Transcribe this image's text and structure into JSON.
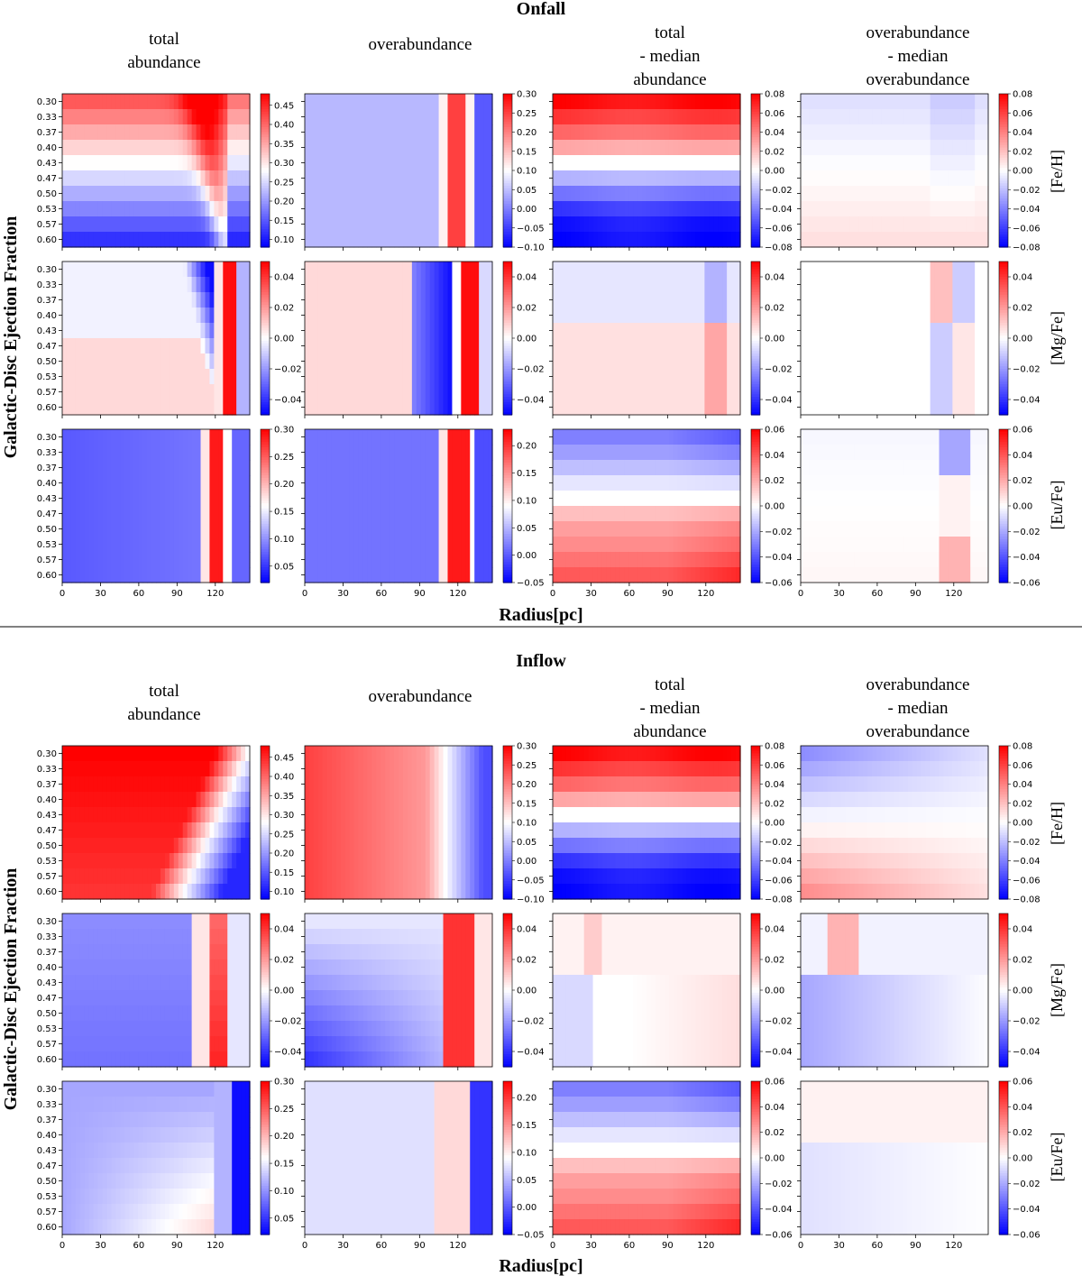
{
  "figure": {
    "sections": [
      {
        "title": "Onfall",
        "xlabel": "Radius[pc]"
      },
      {
        "title": "Inflow",
        "xlabel": "Radius[pc]"
      }
    ],
    "ylabel": "Galactic-Disc Ejection Fraction",
    "column_titles": [
      [
        "total",
        "abundance"
      ],
      [
        "overabundance"
      ],
      [
        "total",
        "- median",
        "abundance"
      ],
      [
        "overabundance",
        "- median",
        "overabundance"
      ]
    ],
    "row_labels": [
      "[Fe/H]",
      "[Mg/Fe]",
      "[Eu/Fe]"
    ],
    "colormap": {
      "low": "#0000ff",
      "mid": "#ffffff",
      "high": "#ff0000",
      "name": "bwr"
    }
  },
  "chart_data": {
    "type": "heatmap",
    "y_categories": [
      "0.30",
      "0.33",
      "0.37",
      "0.40",
      "0.43",
      "0.47",
      "0.50",
      "0.53",
      "0.57",
      "0.60"
    ],
    "x_ticks": [
      "0",
      "30",
      "60",
      "90",
      "120"
    ],
    "x_range": [
      0,
      147
    ],
    "colorbars": {
      "col0": [
        {
          "range": [
            0.08,
            0.48
          ],
          "ticks": [
            "0.10",
            "0.15",
            "0.20",
            "0.25",
            "0.30",
            "0.35",
            "0.40",
            "0.45"
          ]
        },
        {
          "range": [
            -0.05,
            0.05
          ],
          "ticks": [
            "−0.04",
            "−0.02",
            "0.00",
            "0.02",
            "0.04"
          ]
        },
        {
          "range": [
            0.02,
            0.3
          ],
          "ticks": [
            "0.05",
            "0.10",
            "0.15",
            "0.20",
            "0.25",
            "0.30"
          ]
        }
      ],
      "col1": [
        {
          "range": [
            -0.1,
            0.3
          ],
          "ticks": [
            "−0.10",
            "−0.05",
            "0.00",
            "0.05",
            "0.10",
            "0.15",
            "0.20",
            "0.25",
            "0.30"
          ]
        },
        {
          "range": [
            -0.05,
            0.05
          ],
          "ticks": [
            "−0.04",
            "−0.02",
            "0.00",
            "0.02",
            "0.04"
          ]
        },
        {
          "range": [
            -0.05,
            0.23
          ],
          "ticks": [
            "−0.05",
            "0.00",
            "0.05",
            "0.10",
            "0.15",
            "0.20"
          ]
        }
      ],
      "col23": [
        {
          "range": [
            -0.08,
            0.08
          ],
          "ticks": [
            "−0.08",
            "−0.06",
            "−0.04",
            "−0.02",
            "0.00",
            "0.02",
            "0.04",
            "0.06",
            "0.08"
          ]
        },
        {
          "range": [
            -0.05,
            0.05
          ],
          "ticks": [
            "−0.04",
            "−0.02",
            "0.00",
            "0.02",
            "0.04"
          ]
        },
        {
          "range": [
            -0.06,
            0.06
          ],
          "ticks": [
            "−0.06",
            "−0.04",
            "−0.02",
            "0.00",
            "0.02",
            "0.04",
            "0.06"
          ]
        }
      ]
    },
    "panel_patterns": {
      "Onfall": [
        [
          "onfall-fe-total",
          "onfall-fe-over",
          "fe-diff",
          "onfall-fe-overdiff"
        ],
        [
          "onfall-mg-total",
          "onfall-mg-over",
          "onfall-mg-diff",
          "onfall-mg-overdiff"
        ],
        [
          "onfall-eu-total",
          "onfall-eu-over",
          "eu-diff",
          "onfall-eu-overdiff"
        ]
      ],
      "Inflow": [
        [
          "inflow-fe-total",
          "inflow-fe-over",
          "fe-diff",
          "inflow-fe-overdiff"
        ],
        [
          "inflow-mg-total",
          "inflow-mg-over",
          "inflow-mg-diff",
          "inflow-mg-overdiff"
        ],
        [
          "inflow-eu-total",
          "inflow-eu-over",
          "eu-diff",
          "inflow-eu-overdiff"
        ]
      ]
    }
  }
}
